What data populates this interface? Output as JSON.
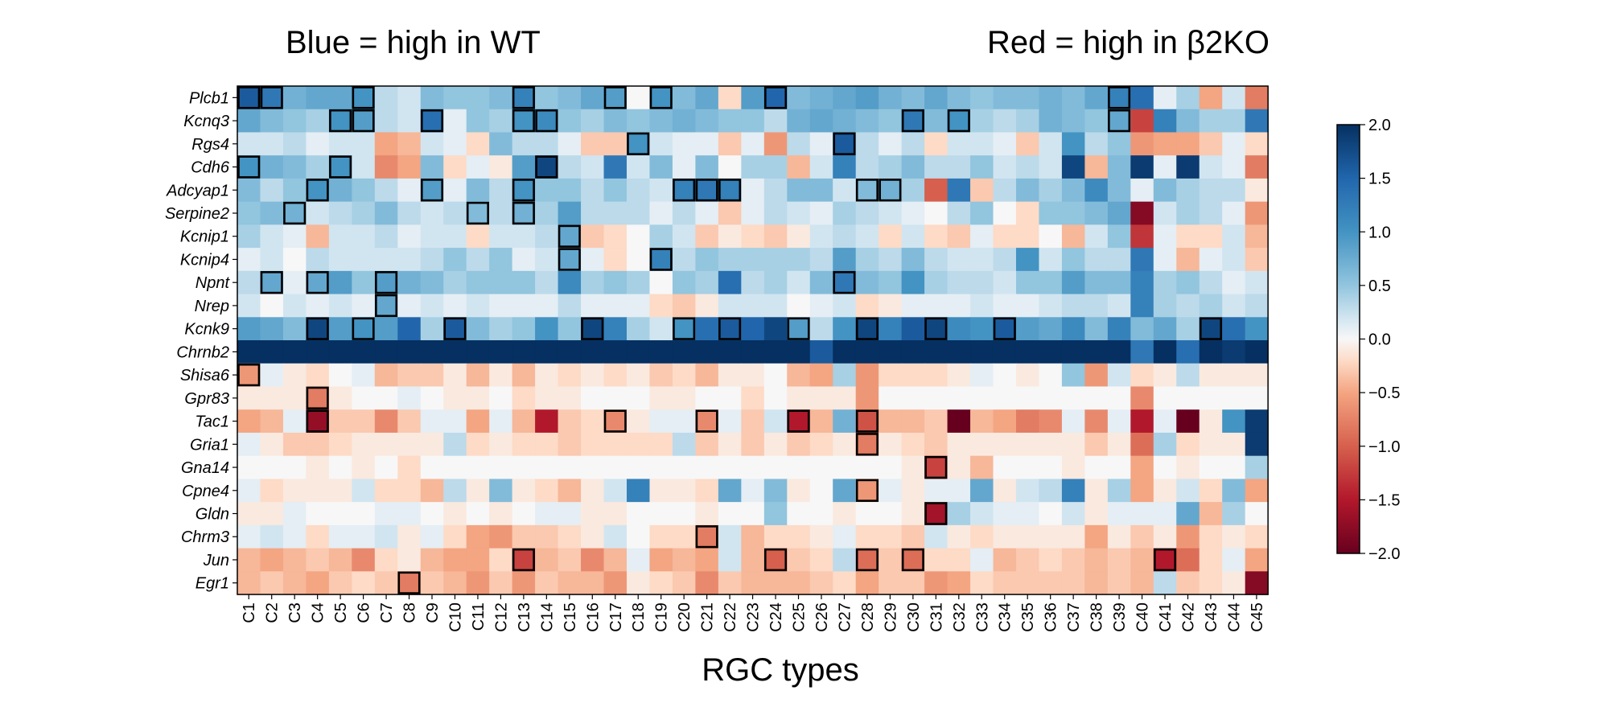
{
  "chart_data": {
    "type": "heatmap",
    "title_left": "Blue = high in WT",
    "title_right": "Red = high in β2KO",
    "xlabel": "RGC types",
    "ylabel": "",
    "rows": [
      "Plcb1",
      "Kcnq3",
      "Rgs4",
      "Cdh6",
      "Adcyap1",
      "Serpine2",
      "Kcnip1",
      "Kcnip4",
      "Npnt",
      "Nrep",
      "Kcnk9",
      "Chrnb2",
      "Shisa6",
      "Gpr83",
      "Tac1",
      "Gria1",
      "Gna14",
      "Cpne4",
      "Gldn",
      "Chrm3",
      "Jun",
      "Egr1"
    ],
    "columns": [
      "C1",
      "C2",
      "C3",
      "C4",
      "C5",
      "C6",
      "C7",
      "C8",
      "C9",
      "C10",
      "C11",
      "C12",
      "C13",
      "C14",
      "C15",
      "C16",
      "C17",
      "C18",
      "C19",
      "C20",
      "C21",
      "C22",
      "C23",
      "C24",
      "C25",
      "C26",
      "C27",
      "C28",
      "C29",
      "C30",
      "C31",
      "C32",
      "C33",
      "C34",
      "C35",
      "C36",
      "C37",
      "C38",
      "C39",
      "C40",
      "C41",
      "C42",
      "C43",
      "C44",
      "C45"
    ],
    "values": [
      [
        1.6,
        1.3,
        0.7,
        0.8,
        0.8,
        1.0,
        0.3,
        0.2,
        0.6,
        0.5,
        0.5,
        0.6,
        1.2,
        0.5,
        0.6,
        0.8,
        0.9,
        0.0,
        1.0,
        0.6,
        0.8,
        -0.2,
        0.9,
        1.5,
        0.6,
        0.7,
        0.8,
        0.9,
        0.7,
        0.6,
        0.8,
        0.6,
        0.5,
        0.6,
        0.6,
        0.7,
        0.6,
        0.8,
        1.2,
        1.4,
        0.1,
        0.4,
        -0.5,
        0.2,
        -0.8
      ],
      [
        0.8,
        0.6,
        0.5,
        0.4,
        1.0,
        0.9,
        0.3,
        0.2,
        1.4,
        0.1,
        0.5,
        0.4,
        1.0,
        1.1,
        0.5,
        0.4,
        0.6,
        0.5,
        0.6,
        0.7,
        0.6,
        0.5,
        0.5,
        0.3,
        0.7,
        0.8,
        0.7,
        0.6,
        0.5,
        1.3,
        0.6,
        1.0,
        0.4,
        0.3,
        0.4,
        0.7,
        0.6,
        0.5,
        0.8,
        -1.2,
        1.2,
        0.6,
        0.4,
        0.4,
        1.3
      ],
      [
        0.2,
        0.2,
        0.3,
        0.1,
        0.2,
        0.2,
        -0.5,
        -0.4,
        0.2,
        0.1,
        -0.2,
        0.6,
        0.3,
        0.3,
        0.1,
        -0.3,
        -0.3,
        1.0,
        0.2,
        0.1,
        0.1,
        -0.3,
        0.1,
        -0.6,
        0.3,
        0.1,
        1.6,
        0.3,
        0.1,
        0.3,
        -0.2,
        0.2,
        0.2,
        0.1,
        -0.3,
        0.2,
        1.0,
        0.3,
        0.5,
        -0.6,
        -0.5,
        -0.5,
        -0.3,
        0.1,
        -0.2
      ],
      [
        1.0,
        0.7,
        0.6,
        0.4,
        1.0,
        0.2,
        -0.7,
        -0.5,
        0.6,
        -0.2,
        0.1,
        -0.1,
        0.9,
        1.8,
        0.3,
        0.2,
        1.3,
        0.2,
        0.6,
        0.1,
        0.6,
        0.0,
        0.4,
        0.4,
        -0.4,
        0.2,
        1.2,
        0.3,
        0.4,
        0.6,
        0.3,
        0.3,
        0.5,
        0.2,
        0.3,
        0.2,
        1.8,
        -0.4,
        0.6,
        1.9,
        0.1,
        1.9,
        0.2,
        0.1,
        -0.8
      ],
      [
        0.6,
        0.3,
        0.5,
        1.0,
        0.7,
        0.5,
        0.3,
        0.1,
        0.9,
        0.1,
        0.6,
        0.3,
        1.0,
        0.5,
        0.5,
        0.3,
        0.5,
        0.3,
        0.2,
        1.2,
        1.3,
        1.2,
        0.1,
        0.3,
        0.6,
        0.6,
        0.2,
        0.6,
        0.7,
        0.4,
        -1.0,
        1.3,
        -0.3,
        0.3,
        0.6,
        0.4,
        0.6,
        1.1,
        0.6,
        0.1,
        0.6,
        0.4,
        0.3,
        0.3,
        -0.1
      ],
      [
        0.5,
        0.6,
        0.7,
        0.2,
        0.3,
        0.4,
        0.6,
        0.3,
        0.2,
        0.3,
        0.6,
        0.3,
        0.7,
        0.4,
        0.9,
        0.3,
        0.3,
        0.3,
        0.1,
        0.3,
        0.1,
        -0.3,
        0.1,
        0.3,
        0.2,
        0.1,
        0.4,
        0.3,
        0.2,
        0.1,
        0.0,
        0.3,
        0.5,
        0.0,
        -0.2,
        0.5,
        0.5,
        0.6,
        0.8,
        -1.8,
        0.2,
        0.4,
        0.3,
        0.1,
        -0.6
      ],
      [
        0.4,
        0.2,
        0.1,
        -0.4,
        0.2,
        0.2,
        0.3,
        0.1,
        0.2,
        0.2,
        -0.2,
        0.2,
        0.2,
        0.3,
        0.8,
        -0.3,
        -0.2,
        0.0,
        0.4,
        0.2,
        -0.3,
        -0.1,
        -0.2,
        -0.3,
        -0.1,
        0.2,
        0.3,
        0.2,
        -0.2,
        0.2,
        -0.2,
        -0.3,
        0.1,
        -0.2,
        -0.2,
        0.0,
        -0.4,
        0.2,
        0.5,
        -1.3,
        0.1,
        -0.2,
        -0.2,
        0.2,
        -0.4
      ],
      [
        0.1,
        0.2,
        0.0,
        0.3,
        0.2,
        0.2,
        0.2,
        0.2,
        0.3,
        0.5,
        0.3,
        0.5,
        0.1,
        0.2,
        0.8,
        0.1,
        -0.2,
        0.0,
        1.2,
        0.3,
        0.5,
        0.4,
        0.4,
        0.4,
        0.4,
        0.3,
        0.9,
        0.4,
        0.3,
        0.6,
        0.3,
        0.2,
        0.2,
        0.3,
        1.0,
        0.2,
        0.5,
        0.3,
        0.3,
        1.3,
        0.1,
        -0.4,
        0.1,
        0.2,
        -0.3
      ],
      [
        0.3,
        0.8,
        0.1,
        0.8,
        0.9,
        0.5,
        0.9,
        0.7,
        0.6,
        0.4,
        0.5,
        0.5,
        0.5,
        0.3,
        1.1,
        0.4,
        0.5,
        0.4,
        0.0,
        0.5,
        0.4,
        1.4,
        0.3,
        0.4,
        0.2,
        0.6,
        1.3,
        0.6,
        0.5,
        1.0,
        0.4,
        0.3,
        0.3,
        0.2,
        0.5,
        0.5,
        0.9,
        0.6,
        0.6,
        1.2,
        0.4,
        0.5,
        0.3,
        0.1,
        0.2
      ],
      [
        0.2,
        0.0,
        0.2,
        0.1,
        0.2,
        0.1,
        0.8,
        0.1,
        0.2,
        0.1,
        0.2,
        0.1,
        0.1,
        0.1,
        0.3,
        0.1,
        0.1,
        0.1,
        -0.2,
        -0.3,
        -0.1,
        0.2,
        0.2,
        0.2,
        0.0,
        0.1,
        0.2,
        -0.2,
        -0.1,
        0.1,
        0.1,
        0.1,
        0.2,
        0.1,
        0.1,
        0.2,
        0.3,
        0.3,
        0.2,
        1.2,
        0.4,
        0.3,
        0.4,
        0.2,
        0.3
      ],
      [
        0.9,
        0.8,
        0.6,
        1.8,
        0.9,
        1.0,
        0.9,
        1.5,
        0.4,
        1.6,
        0.6,
        0.4,
        0.5,
        1.0,
        0.5,
        1.8,
        1.2,
        0.4,
        0.2,
        1.0,
        1.4,
        1.6,
        1.5,
        1.8,
        0.9,
        0.3,
        1.0,
        1.8,
        1.2,
        1.6,
        1.8,
        1.1,
        1.0,
        1.6,
        0.9,
        0.8,
        1.1,
        0.6,
        1.2,
        0.6,
        0.8,
        0.4,
        1.8,
        1.4,
        1.0
      ],
      [
        2.0,
        2.0,
        2.0,
        2.0,
        2.0,
        2.0,
        2.0,
        2.0,
        2.0,
        2.0,
        2.0,
        2.0,
        2.0,
        2.0,
        2.0,
        2.0,
        2.0,
        2.0,
        2.0,
        2.0,
        2.0,
        2.0,
        2.0,
        2.0,
        2.0,
        1.6,
        2.0,
        2.0,
        2.0,
        2.0,
        2.0,
        2.0,
        2.0,
        2.0,
        2.0,
        2.0,
        2.0,
        2.0,
        2.0,
        1.3,
        2.0,
        1.4,
        2.0,
        1.9,
        2.0
      ],
      [
        -0.6,
        0.1,
        -0.1,
        -0.2,
        0.0,
        0.1,
        -0.4,
        -0.3,
        -0.3,
        -0.1,
        -0.4,
        -0.1,
        -0.4,
        -0.1,
        -0.2,
        -0.1,
        -0.2,
        -0.1,
        -0.3,
        -0.2,
        -0.4,
        -0.1,
        -0.1,
        0.0,
        -0.4,
        -0.5,
        0.4,
        -0.6,
        -0.2,
        -0.2,
        -0.2,
        -0.1,
        0.1,
        0.0,
        -0.1,
        0.0,
        0.5,
        -0.6,
        0.2,
        -0.2,
        -0.1,
        0.3,
        -0.1,
        -0.1,
        -0.1
      ],
      [
        -0.1,
        -0.1,
        -0.1,
        -0.8,
        -0.1,
        0.0,
        0.0,
        0.1,
        0.0,
        -0.1,
        -0.1,
        0.0,
        -0.2,
        -0.1,
        -0.1,
        0.0,
        0.0,
        0.0,
        -0.1,
        -0.1,
        0.0,
        0.0,
        -0.2,
        0.0,
        -0.1,
        -0.1,
        -0.1,
        -0.6,
        0.0,
        0.0,
        0.0,
        0.0,
        0.0,
        0.0,
        0.0,
        0.0,
        0.0,
        0.0,
        0.0,
        -0.7,
        0.0,
        0.0,
        0.0,
        0.0,
        0.0
      ],
      [
        -0.5,
        -0.4,
        0.1,
        -1.7,
        -0.3,
        -0.3,
        -0.7,
        -0.3,
        0.1,
        0.1,
        -0.5,
        0.1,
        -0.4,
        -1.5,
        -0.3,
        -0.2,
        -0.7,
        -0.1,
        0.1,
        0.1,
        -0.7,
        0.1,
        -0.3,
        0.2,
        -1.5,
        -0.4,
        0.7,
        -1.1,
        -0.4,
        -0.4,
        -0.3,
        -2.0,
        -0.4,
        -0.5,
        -0.8,
        -0.7,
        0.1,
        -0.7,
        0.1,
        -1.5,
        0.1,
        -2.0,
        -0.1,
        1.0,
        1.9
      ],
      [
        0.1,
        -0.1,
        -0.3,
        -0.3,
        -0.2,
        -0.1,
        -0.1,
        -0.1,
        -0.1,
        0.3,
        -0.2,
        -0.1,
        -0.2,
        -0.2,
        -0.3,
        -0.2,
        -0.2,
        -0.2,
        -0.2,
        0.3,
        -0.3,
        -0.1,
        -0.3,
        -0.1,
        -0.3,
        -0.2,
        -0.1,
        -0.8,
        -0.1,
        -0.2,
        -0.3,
        -0.1,
        -0.1,
        -0.1,
        -0.1,
        -0.1,
        -0.1,
        -0.3,
        -0.1,
        -0.9,
        0.4,
        -0.2,
        -0.1,
        -0.1,
        1.9
      ],
      [
        0.0,
        0.0,
        0.0,
        -0.1,
        0.0,
        -0.1,
        0.0,
        -0.2,
        0.0,
        0.0,
        0.0,
        0.0,
        0.0,
        0.0,
        0.0,
        0.0,
        0.0,
        0.0,
        0.0,
        0.0,
        0.0,
        0.0,
        0.0,
        0.0,
        0.0,
        0.0,
        0.0,
        0.0,
        0.0,
        -0.1,
        -1.2,
        -0.1,
        -0.4,
        0.0,
        0.0,
        0.0,
        -0.1,
        0.0,
        0.0,
        -0.5,
        0.0,
        -0.1,
        0.0,
        0.0,
        0.4
      ],
      [
        0.1,
        -0.2,
        -0.1,
        -0.1,
        -0.1,
        0.2,
        -0.2,
        -0.2,
        -0.4,
        0.3,
        -0.1,
        0.6,
        -0.1,
        -0.2,
        -0.4,
        -0.1,
        0.2,
        1.2,
        -0.1,
        -0.1,
        -0.2,
        0.8,
        0.1,
        0.6,
        -0.1,
        0.0,
        0.8,
        -0.6,
        0.1,
        -0.1,
        0.1,
        0.1,
        0.8,
        -0.1,
        0.2,
        0.3,
        1.2,
        -0.1,
        0.4,
        -0.5,
        -0.1,
        0.2,
        -0.2,
        0.6,
        -0.5
      ],
      [
        -0.1,
        -0.1,
        0.1,
        0.0,
        0.0,
        0.0,
        0.1,
        0.1,
        0.0,
        -0.1,
        0.0,
        -0.1,
        0.0,
        0.1,
        0.1,
        -0.1,
        -0.1,
        0.0,
        0.0,
        0.0,
        -0.1,
        0.0,
        0.0,
        0.5,
        0.0,
        0.0,
        -0.1,
        0.0,
        0.0,
        -0.1,
        -1.6,
        0.4,
        0.2,
        0.1,
        0.1,
        0.0,
        0.2,
        -0.1,
        0.1,
        0.1,
        0.1,
        0.8,
        -0.4,
        0.4,
        0.0
      ],
      [
        0.1,
        0.2,
        0.1,
        -0.2,
        0.1,
        0.1,
        0.2,
        -0.1,
        0.1,
        -0.2,
        -0.5,
        -0.6,
        -0.3,
        -0.3,
        -0.2,
        -0.1,
        0.2,
        0.0,
        -0.2,
        -0.2,
        -0.8,
        0.2,
        -0.4,
        -0.2,
        -0.2,
        -0.1,
        0.1,
        -0.2,
        -0.2,
        -0.3,
        0.2,
        -0.1,
        -0.2,
        -0.1,
        -0.1,
        -0.1,
        -0.1,
        -0.5,
        -0.1,
        -0.3,
        -0.1,
        -0.6,
        -0.2,
        -0.1,
        -0.2
      ],
      [
        -0.4,
        -0.5,
        -0.4,
        -0.3,
        -0.4,
        -0.7,
        -0.2,
        -0.1,
        -0.4,
        -0.5,
        -0.5,
        -0.2,
        -1.2,
        -0.4,
        -0.3,
        -0.7,
        -0.4,
        0.1,
        -0.5,
        -0.4,
        -0.5,
        0.2,
        -0.4,
        -1.0,
        -0.3,
        -0.2,
        0.3,
        -0.9,
        -0.3,
        -0.9,
        -0.2,
        -0.2,
        0.1,
        -0.4,
        -0.3,
        -0.2,
        -0.3,
        -0.4,
        -0.3,
        -0.4,
        -1.5,
        -0.9,
        -0.2,
        0.1,
        -0.5
      ],
      [
        -0.4,
        -0.3,
        -0.4,
        -0.5,
        -0.3,
        -0.2,
        -0.3,
        -0.8,
        -0.3,
        -0.4,
        -0.6,
        -0.3,
        -0.6,
        -0.3,
        -0.4,
        -0.4,
        -0.6,
        -0.1,
        -0.2,
        -0.3,
        -0.7,
        -0.3,
        -0.4,
        -0.4,
        -0.4,
        -0.3,
        -0.2,
        -0.5,
        -0.3,
        -0.3,
        -0.6,
        -0.5,
        -0.2,
        -0.3,
        -0.3,
        -0.3,
        -0.3,
        -0.4,
        -0.3,
        -0.4,
        0.3,
        -0.3,
        -0.2,
        -0.1,
        -1.8
      ]
    ],
    "boxed_cells": [
      [
        0,
        0
      ],
      [
        0,
        1
      ],
      [
        0,
        5
      ],
      [
        0,
        12
      ],
      [
        0,
        16
      ],
      [
        0,
        18
      ],
      [
        0,
        23
      ],
      [
        0,
        38
      ],
      [
        1,
        4
      ],
      [
        1,
        5
      ],
      [
        1,
        8
      ],
      [
        1,
        12
      ],
      [
        1,
        13
      ],
      [
        1,
        29
      ],
      [
        1,
        31
      ],
      [
        1,
        38
      ],
      [
        2,
        17
      ],
      [
        2,
        26
      ],
      [
        3,
        0
      ],
      [
        3,
        4
      ],
      [
        3,
        13
      ],
      [
        4,
        3
      ],
      [
        4,
        8
      ],
      [
        4,
        12
      ],
      [
        4,
        19
      ],
      [
        4,
        20
      ],
      [
        4,
        21
      ],
      [
        4,
        27
      ],
      [
        4,
        28
      ],
      [
        5,
        2
      ],
      [
        5,
        10
      ],
      [
        5,
        12
      ],
      [
        6,
        14
      ],
      [
        7,
        14
      ],
      [
        7,
        18
      ],
      [
        8,
        1
      ],
      [
        8,
        3
      ],
      [
        8,
        6
      ],
      [
        8,
        26
      ],
      [
        9,
        6
      ],
      [
        10,
        3
      ],
      [
        10,
        5
      ],
      [
        10,
        9
      ],
      [
        10,
        15
      ],
      [
        10,
        19
      ],
      [
        10,
        21
      ],
      [
        10,
        24
      ],
      [
        10,
        27
      ],
      [
        10,
        30
      ],
      [
        10,
        33
      ],
      [
        10,
        42
      ],
      [
        12,
        0
      ],
      [
        13,
        3
      ],
      [
        14,
        3
      ],
      [
        14,
        16
      ],
      [
        14,
        20
      ],
      [
        14,
        24
      ],
      [
        14,
        27
      ],
      [
        15,
        27
      ],
      [
        16,
        30
      ],
      [
        17,
        27
      ],
      [
        18,
        30
      ],
      [
        19,
        20
      ],
      [
        20,
        12
      ],
      [
        20,
        23
      ],
      [
        20,
        27
      ],
      [
        20,
        29
      ],
      [
        20,
        40
      ],
      [
        21,
        7
      ]
    ],
    "colorbar": {
      "range": [
        -2.0,
        2.0
      ],
      "ticks": [
        2.0,
        1.5,
        1.0,
        0.5,
        0.0,
        -0.5,
        -1.0,
        -1.5,
        -2.0
      ],
      "tick_labels": [
        "2.0",
        "1.5",
        "1.0",
        "0.5",
        "0.0",
        "−0.5",
        "−1.0",
        "−1.5",
        "−2.0"
      ],
      "colormap": "diverging red-white-blue",
      "low_color": "#67001f",
      "high_color": "#053061",
      "placement": "right"
    }
  }
}
